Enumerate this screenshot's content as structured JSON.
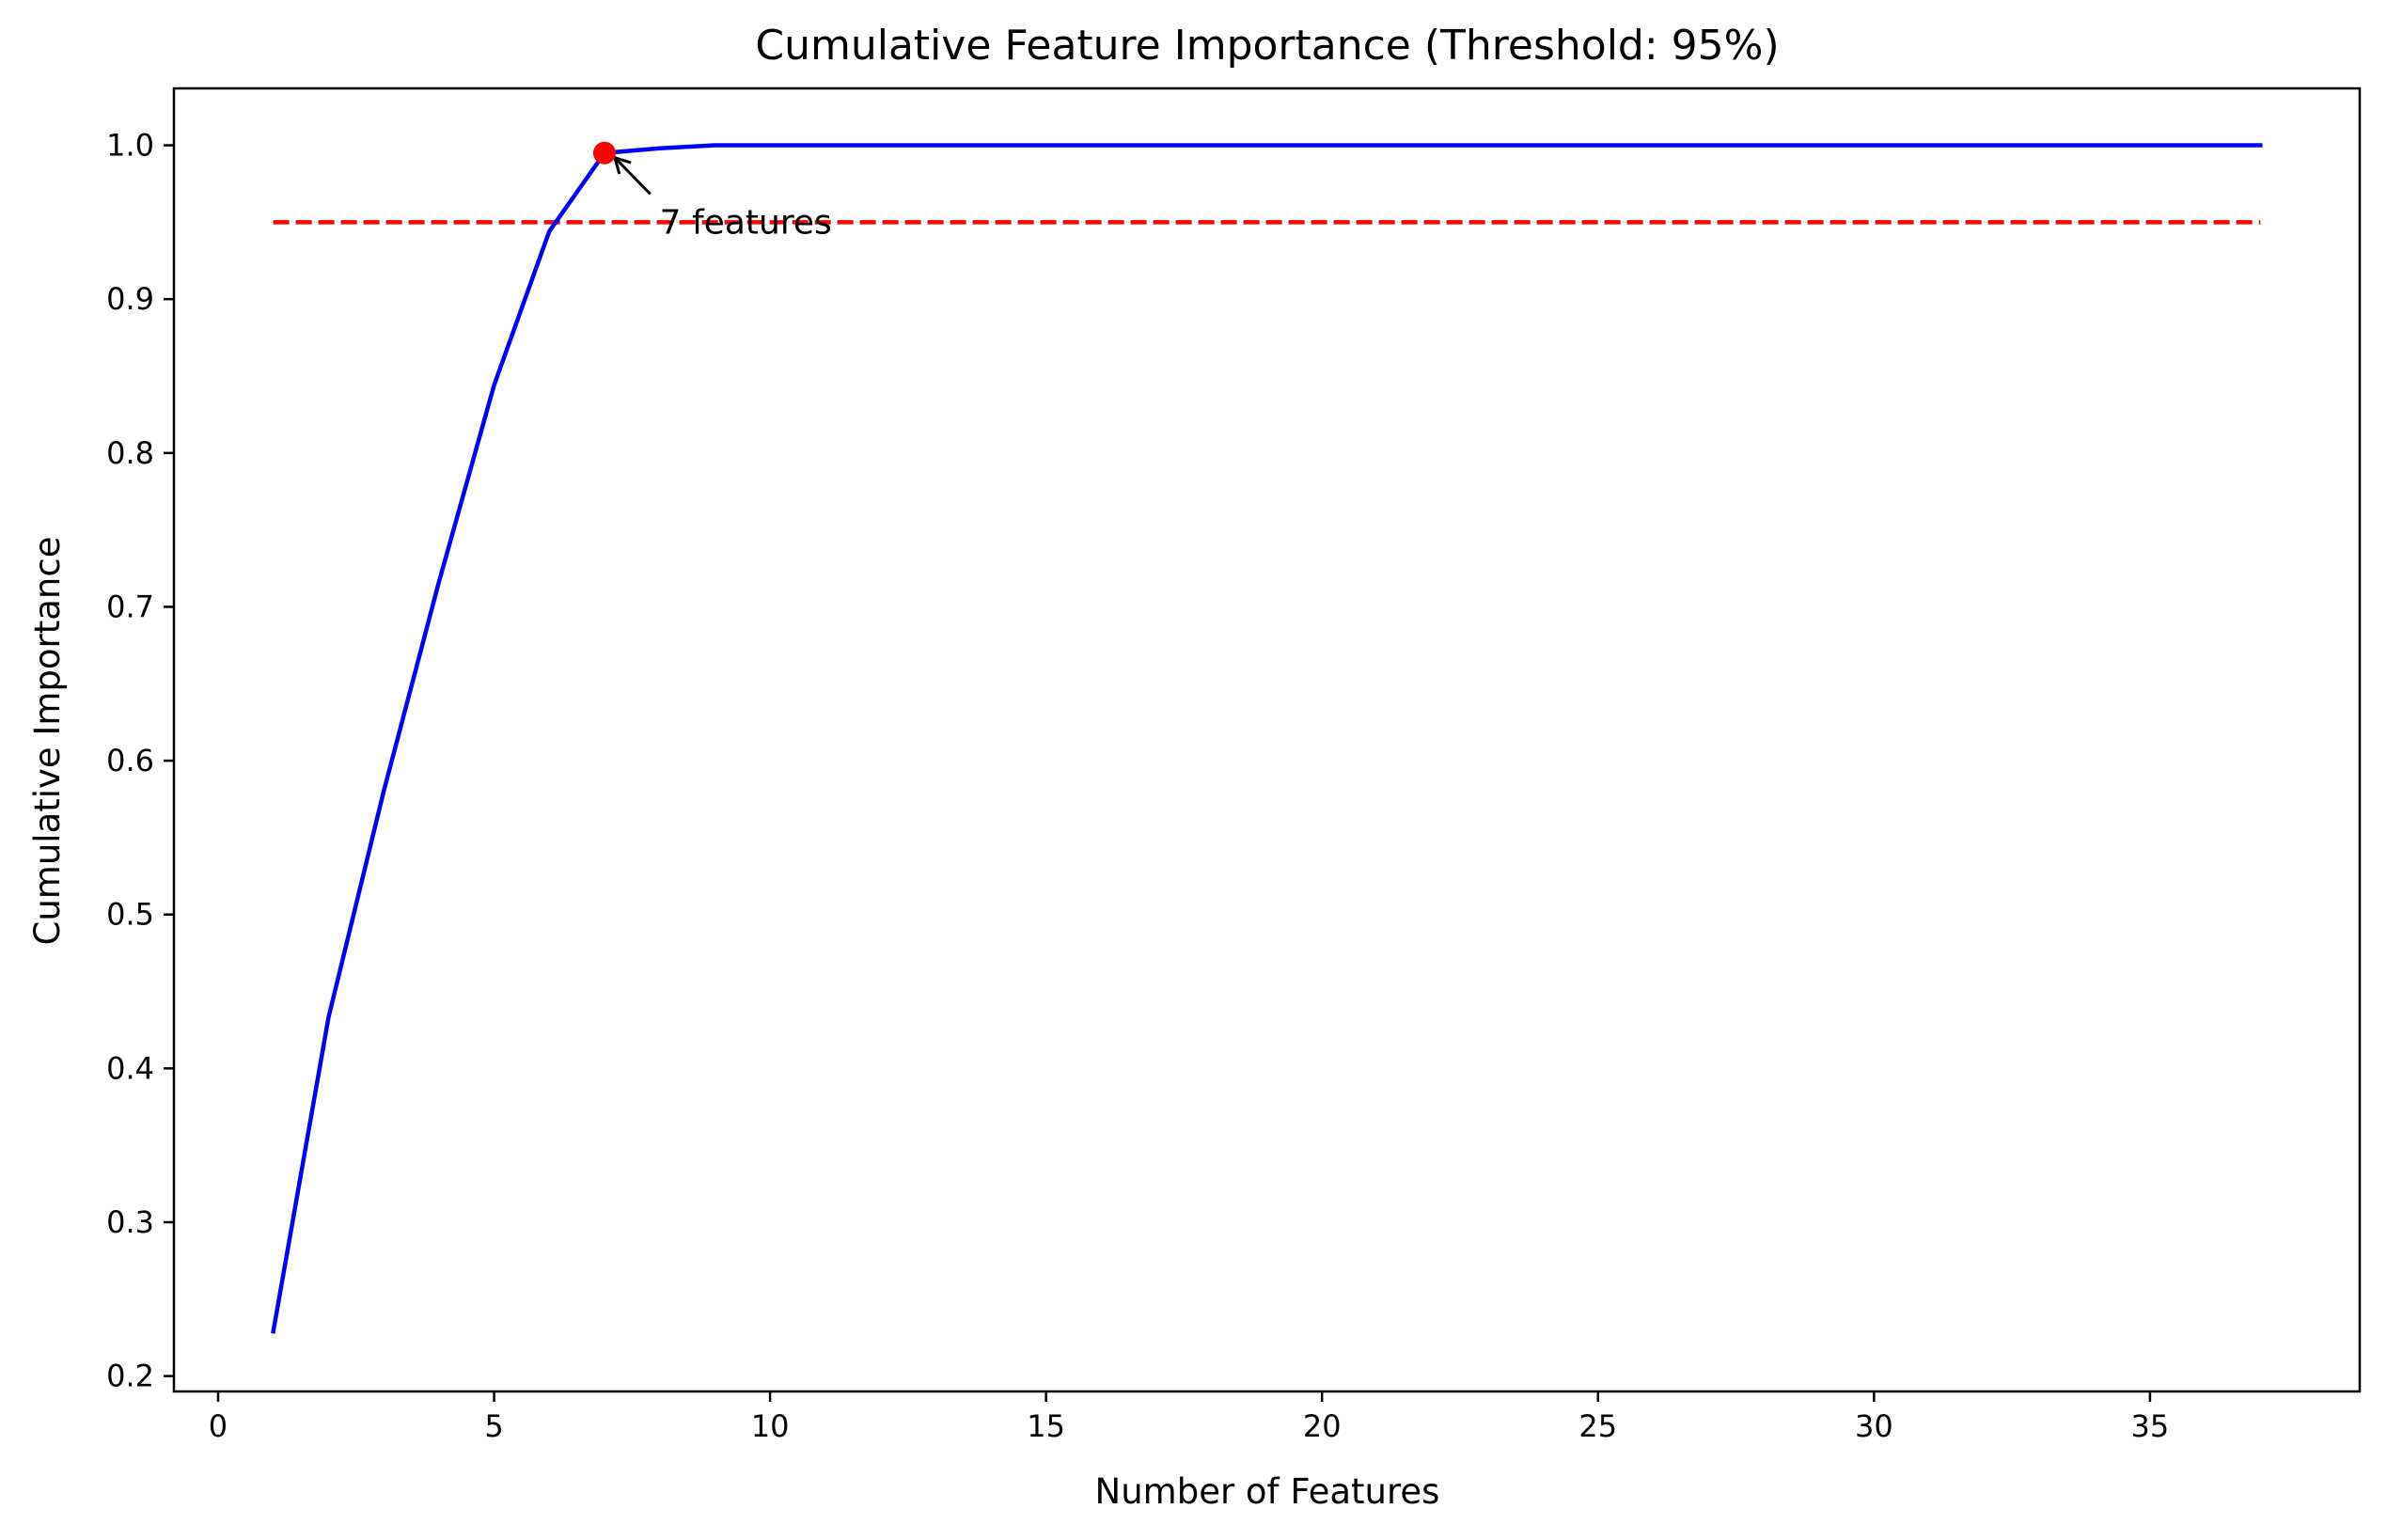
{
  "chart_data": {
    "type": "line",
    "title": "Cumulative Feature Importance (Threshold: 95%)",
    "xlabel": "Number of Features",
    "ylabel": "Cumulative Importance",
    "xlim": [
      -0.8,
      38.8
    ],
    "ylim": [
      0.19,
      1.037
    ],
    "xticks": [
      0,
      5,
      10,
      15,
      20,
      25,
      30,
      35
    ],
    "xtick_labels": [
      "0",
      "5",
      "10",
      "15",
      "20",
      "25",
      "30",
      "35"
    ],
    "yticks": [
      0.2,
      0.3,
      0.4,
      0.5,
      0.6,
      0.7,
      0.8,
      0.9,
      1.0
    ],
    "ytick_labels": [
      "0.2",
      "0.3",
      "0.4",
      "0.5",
      "0.6",
      "0.7",
      "0.8",
      "0.9",
      "1.0"
    ],
    "grid": false,
    "series": [
      {
        "style": "solid",
        "color": "#0000ff",
        "x": [
          1,
          2,
          3,
          4,
          5,
          6,
          7,
          8,
          9,
          10,
          11,
          12,
          13,
          14,
          15,
          16,
          17,
          18,
          19,
          20,
          21,
          22,
          23,
          24,
          25,
          26,
          27,
          28,
          29,
          30,
          31,
          32,
          33,
          34,
          35,
          36,
          37
        ],
        "y": [
          0.229,
          0.433,
          0.58,
          0.716,
          0.844,
          0.944,
          0.995,
          0.998,
          1.0,
          1.0,
          1.0,
          1.0,
          1.0,
          1.0,
          1.0,
          1.0,
          1.0,
          1.0,
          1.0,
          1.0,
          1.0,
          1.0,
          1.0,
          1.0,
          1.0,
          1.0,
          1.0,
          1.0,
          1.0,
          1.0,
          1.0,
          1.0,
          1.0,
          1.0,
          1.0,
          1.0,
          1.0
        ]
      }
    ],
    "threshold_line": {
      "y": 0.95,
      "x_start": 1,
      "x_end": 37,
      "style": "dashed",
      "color": "#ff0000"
    },
    "highlight_point": {
      "x": 7,
      "y": 0.995,
      "color": "#ff0000"
    },
    "annotation": {
      "text": "7 features",
      "x": 8,
      "y": 0.95,
      "arrow_to_x": 7,
      "arrow_to_y": 0.995
    }
  }
}
